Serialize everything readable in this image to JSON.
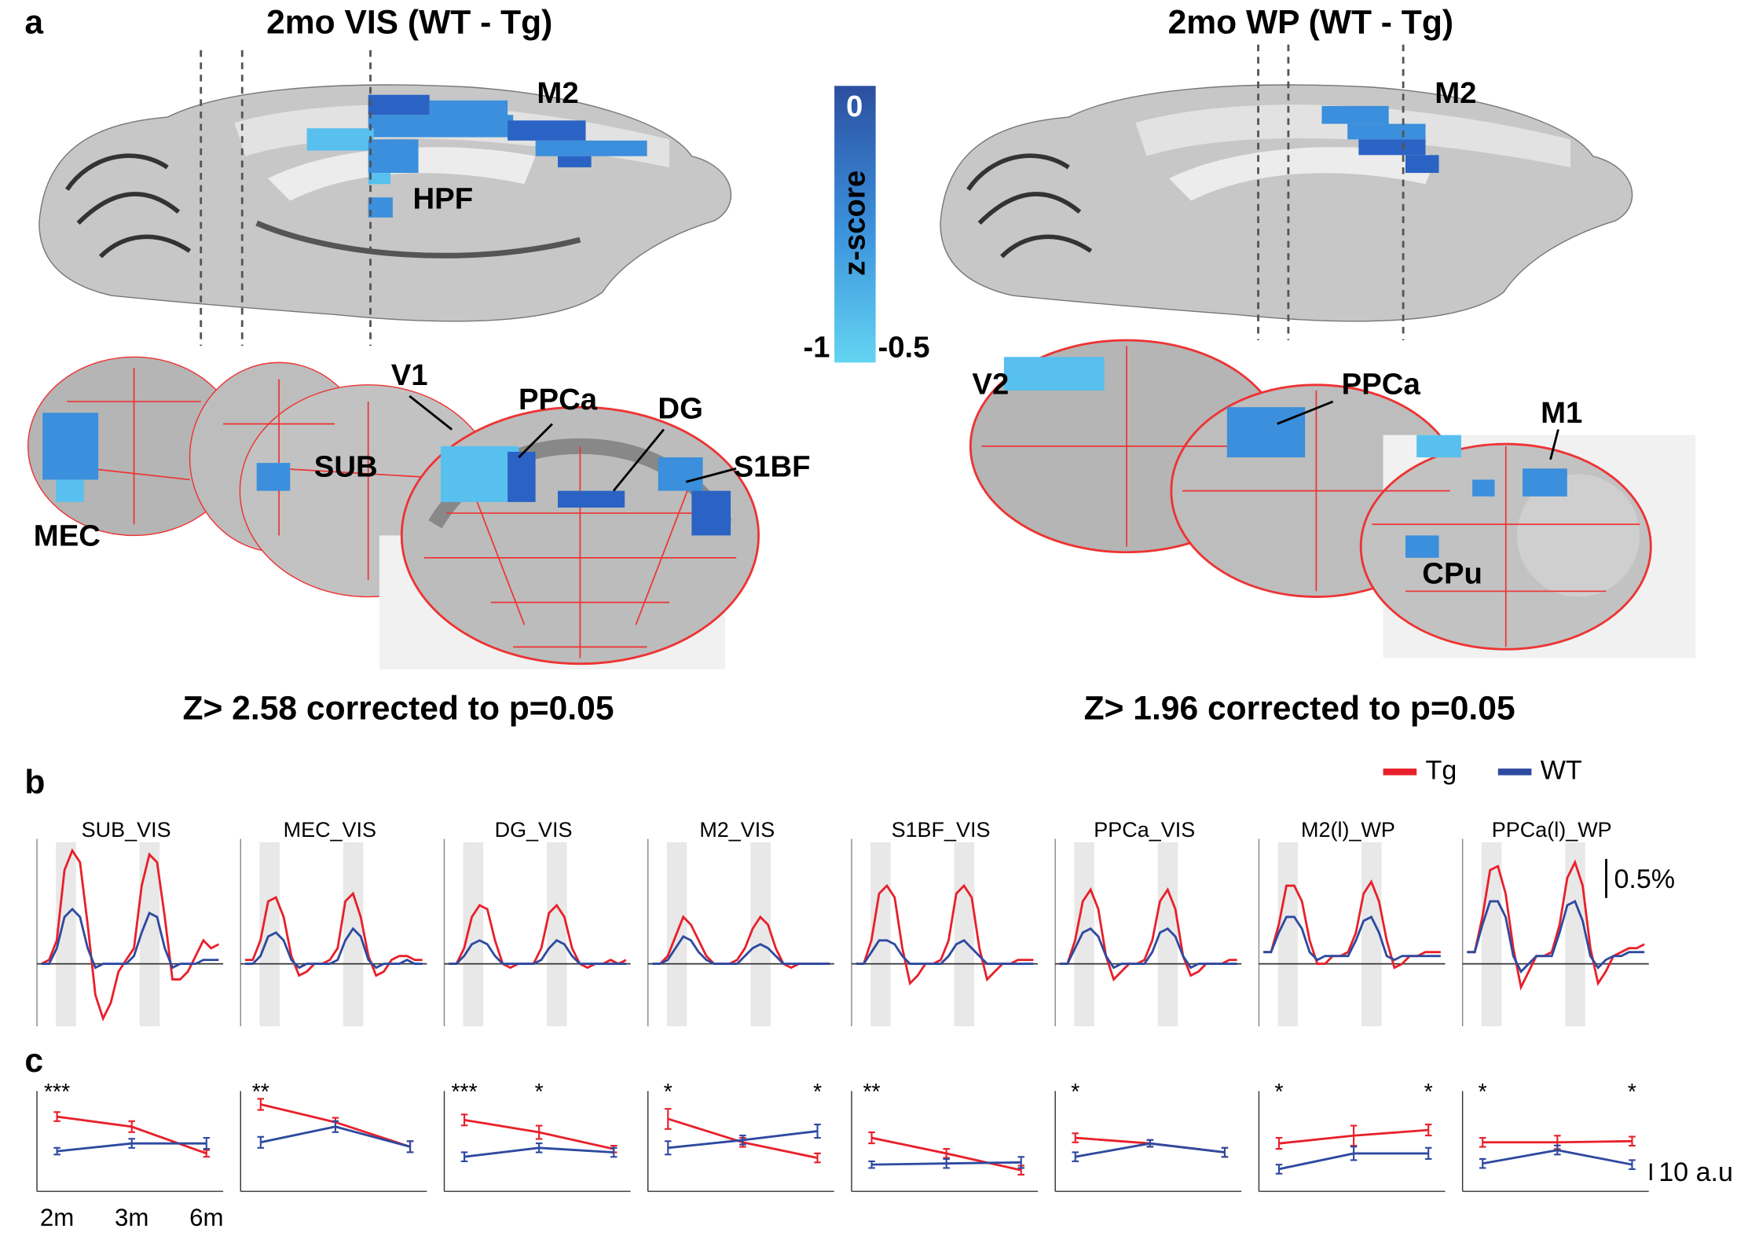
{
  "panel_a": {
    "label": "a",
    "titles": [
      "2mo VIS (WT - Tg)",
      "2mo WP (WT - Tg)"
    ],
    "regions_left": [
      "M2",
      "HPF",
      "V1",
      "PPCa",
      "DG",
      "SUB",
      "S1BF",
      "MEC"
    ],
    "regions_right": [
      "M2",
      "V2",
      "PPCa",
      "M1",
      "CPu"
    ],
    "colorbar": {
      "label": "z-score",
      "top": 0,
      "bottom_left": -1,
      "bottom_right": -0.5
    },
    "thresholds": [
      "Z> 2.58 corrected to p=0.05",
      "Z> 1.96 corrected to p=0.05"
    ]
  },
  "panel_b": {
    "label": "b"
  },
  "panel_c": {
    "label": "c"
  },
  "chart_data": [
    {
      "type": "line",
      "title": "SUB_VIS",
      "ylim": [
        -0.8,
        1.6
      ],
      "series": [
        {
          "name": "Tg",
          "color": "#e8202a",
          "values": [
            0,
            0.05,
            0.3,
            1.2,
            1.45,
            1.3,
            0.5,
            -0.4,
            -0.7,
            -0.5,
            -0.1,
            0.05,
            0.2,
            1.0,
            1.4,
            1.3,
            0.6,
            -0.2,
            -0.2,
            -0.1,
            0.1,
            0.3,
            0.2,
            0.25
          ]
        },
        {
          "name": "WT",
          "color": "#2e4aa0",
          "values": [
            0,
            0,
            0.2,
            0.6,
            0.7,
            0.6,
            0.2,
            -0.05,
            0,
            0,
            0,
            0,
            0.1,
            0.4,
            0.65,
            0.6,
            0.2,
            -0.05,
            0,
            0,
            0,
            0.05,
            0.05,
            0.05
          ]
        }
      ]
    },
    {
      "type": "line",
      "title": "MEC_VIS",
      "ylim": [
        -0.8,
        1.6
      ],
      "series": [
        {
          "name": "Tg",
          "color": "#e8202a",
          "values": [
            0.05,
            0.05,
            0.3,
            0.8,
            0.85,
            0.6,
            0.1,
            -0.15,
            -0.1,
            0,
            0,
            0.05,
            0.2,
            0.8,
            0.9,
            0.6,
            0.1,
            -0.15,
            -0.1,
            0.05,
            0.1,
            0.1,
            0.05,
            0.05
          ]
        },
        {
          "name": "WT",
          "color": "#2e4aa0",
          "values": [
            0,
            0,
            0.1,
            0.35,
            0.4,
            0.3,
            0.05,
            -0.05,
            0,
            0,
            0,
            0,
            0.05,
            0.3,
            0.45,
            0.35,
            0.05,
            -0.05,
            0,
            0,
            0,
            0.05,
            0,
            0
          ]
        }
      ]
    },
    {
      "type": "line",
      "title": "DG_VIS",
      "ylim": [
        -0.8,
        1.6
      ],
      "series": [
        {
          "name": "Tg",
          "color": "#e8202a",
          "values": [
            0,
            0,
            0.2,
            0.6,
            0.75,
            0.7,
            0.3,
            0,
            -0.05,
            0,
            0,
            0,
            0.2,
            0.65,
            0.75,
            0.6,
            0.2,
            0,
            -0.05,
            0,
            0,
            0.05,
            0,
            0.05
          ]
        },
        {
          "name": "WT",
          "color": "#2e4aa0",
          "values": [
            0,
            0,
            0.1,
            0.25,
            0.3,
            0.25,
            0.1,
            0,
            0,
            0,
            0,
            0,
            0.05,
            0.2,
            0.3,
            0.25,
            0.1,
            0,
            0,
            0,
            0,
            0,
            0,
            0
          ]
        }
      ]
    },
    {
      "type": "line",
      "title": "M2_VIS",
      "ylim": [
        -0.8,
        1.6
      ],
      "series": [
        {
          "name": "Tg",
          "color": "#e8202a",
          "values": [
            0,
            0,
            0.1,
            0.35,
            0.6,
            0.5,
            0.3,
            0.1,
            0,
            0,
            0,
            0.05,
            0.2,
            0.45,
            0.6,
            0.5,
            0.2,
            0,
            -0.05,
            0,
            0,
            0,
            0,
            0
          ]
        },
        {
          "name": "WT",
          "color": "#2e4aa0",
          "values": [
            0,
            0,
            0.05,
            0.2,
            0.35,
            0.3,
            0.15,
            0.05,
            0,
            0,
            0,
            0,
            0.1,
            0.2,
            0.25,
            0.2,
            0.1,
            0,
            0,
            0,
            0,
            0,
            0,
            0
          ]
        }
      ]
    },
    {
      "type": "line",
      "title": "S1BF_VIS",
      "ylim": [
        -0.8,
        1.6
      ],
      "series": [
        {
          "name": "Tg",
          "color": "#e8202a",
          "values": [
            0,
            0,
            0.3,
            0.9,
            1.0,
            0.85,
            0.2,
            -0.25,
            -0.15,
            0,
            0,
            0.05,
            0.3,
            0.9,
            1.0,
            0.85,
            0.2,
            -0.2,
            -0.1,
            0,
            0,
            0.05,
            0.05,
            0.05
          ]
        },
        {
          "name": "WT",
          "color": "#2e4aa0",
          "values": [
            0,
            0,
            0.15,
            0.3,
            0.3,
            0.25,
            0.1,
            0,
            0,
            0,
            0,
            0,
            0.1,
            0.25,
            0.3,
            0.2,
            0.1,
            0,
            0,
            0,
            0,
            0,
            0,
            0
          ]
        }
      ]
    },
    {
      "type": "line",
      "title": "PPCa_VIS",
      "ylim": [
        -0.8,
        1.6
      ],
      "series": [
        {
          "name": "Tg",
          "color": "#e8202a",
          "values": [
            0,
            0,
            0.3,
            0.8,
            0.95,
            0.7,
            0.1,
            -0.2,
            -0.1,
            0,
            0,
            0.05,
            0.3,
            0.8,
            0.95,
            0.7,
            0.1,
            -0.15,
            -0.1,
            0,
            0,
            0,
            0.05,
            0.05
          ]
        },
        {
          "name": "WT",
          "color": "#2e4aa0",
          "values": [
            0,
            0,
            0.2,
            0.4,
            0.45,
            0.35,
            0.1,
            -0.05,
            0,
            0,
            0,
            0,
            0.15,
            0.4,
            0.45,
            0.35,
            0.1,
            -0.05,
            0,
            0,
            0,
            0,
            0,
            0
          ]
        }
      ]
    },
    {
      "type": "line",
      "title": "M2(l)_WP",
      "ylim": [
        -0.8,
        1.6
      ],
      "series": [
        {
          "name": "Tg",
          "color": "#e8202a",
          "values": [
            0.15,
            0.15,
            0.5,
            1.0,
            1.0,
            0.8,
            0.3,
            0,
            0,
            0.1,
            0.1,
            0.15,
            0.4,
            0.9,
            1.05,
            0.8,
            0.3,
            -0.05,
            0,
            0.1,
            0.1,
            0.15,
            0.15,
            0.15
          ]
        },
        {
          "name": "WT",
          "color": "#2e4aa0",
          "values": [
            0.15,
            0.15,
            0.4,
            0.6,
            0.6,
            0.45,
            0.15,
            0.05,
            0.1,
            0.1,
            0.1,
            0.1,
            0.3,
            0.55,
            0.6,
            0.4,
            0.1,
            0.05,
            0.1,
            0.1,
            0.1,
            0.1,
            0.1,
            0.1
          ]
        }
      ]
    },
    {
      "type": "line",
      "title": "PPCa(l)_WP",
      "ylim": [
        -0.8,
        1.6
      ],
      "scalebar": {
        "value": 0.5,
        "label": "0.5%"
      },
      "series": [
        {
          "name": "Tg",
          "color": "#e8202a",
          "values": [
            0.15,
            0.15,
            0.6,
            1.2,
            1.25,
            0.9,
            0.2,
            -0.3,
            -0.1,
            0.1,
            0.1,
            0.15,
            0.5,
            1.1,
            1.3,
            1.0,
            0.2,
            -0.25,
            -0.1,
            0.1,
            0.15,
            0.2,
            0.2,
            0.25
          ]
        },
        {
          "name": "WT",
          "color": "#2e4aa0",
          "values": [
            0.15,
            0.15,
            0.5,
            0.8,
            0.8,
            0.6,
            0.1,
            -0.1,
            0,
            0.1,
            0.1,
            0.1,
            0.4,
            0.75,
            0.8,
            0.55,
            0.1,
            -0.05,
            0.05,
            0.1,
            0.1,
            0.15,
            0.15,
            0.15
          ]
        }
      ]
    },
    {
      "type": "errorline",
      "categories": [
        "2m",
        "3m",
        "6m"
      ],
      "ylim": [
        0,
        60
      ],
      "significance": [
        "***",
        null,
        null
      ],
      "series": [
        {
          "name": "Tg",
          "color": "#e8202a",
          "values": [
            44.7,
            38.7,
            22.7
          ],
          "errors": [
            2.7,
            3.3,
            2
          ]
        },
        {
          "name": "WT",
          "color": "#2e4aa0",
          "values": [
            24,
            28.7,
            28.7
          ],
          "errors": [
            2,
            2.7,
            3.3
          ]
        }
      ]
    },
    {
      "type": "errorline",
      "ylim": [
        0,
        60
      ],
      "significance": [
        "**",
        null,
        null
      ],
      "series": [
        {
          "name": "Tg",
          "color": "#e8202a",
          "values": [
            52,
            41.3,
            26.7
          ],
          "errors": [
            3.3,
            2.7,
            3.3
          ]
        },
        {
          "name": "WT",
          "color": "#2e4aa0",
          "values": [
            29.3,
            38.7,
            26.7
          ],
          "errors": [
            3.3,
            3.3,
            3.3
          ]
        }
      ]
    },
    {
      "type": "errorline",
      "ylim": [
        0,
        60
      ],
      "significance": [
        "***",
        "*",
        null
      ],
      "series": [
        {
          "name": "Tg",
          "color": "#e8202a",
          "values": [
            42.7,
            35.3,
            25.3
          ],
          "errors": [
            3.3,
            4,
            2
          ]
        },
        {
          "name": "WT",
          "color": "#2e4aa0",
          "values": [
            20.7,
            26,
            23.3
          ],
          "errors": [
            2.7,
            2.7,
            2.7
          ]
        }
      ]
    },
    {
      "type": "errorline",
      "ylim": [
        0,
        60
      ],
      "significance": [
        "*",
        null,
        "*"
      ],
      "series": [
        {
          "name": "Tg",
          "color": "#e8202a",
          "values": [
            43.3,
            29.3,
            20
          ],
          "errors": [
            6,
            2.7,
            2.7
          ]
        },
        {
          "name": "WT",
          "color": "#2e4aa0",
          "values": [
            26,
            30.7,
            36
          ],
          "errors": [
            4,
            2.7,
            4
          ]
        }
      ]
    },
    {
      "type": "errorline",
      "ylim": [
        0,
        60
      ],
      "significance": [
        "**",
        null,
        null
      ],
      "series": [
        {
          "name": "Tg",
          "color": "#e8202a",
          "values": [
            32,
            22.7,
            12.7
          ],
          "errors": [
            3.3,
            2.7,
            2.7
          ]
        },
        {
          "name": "WT",
          "color": "#2e4aa0",
          "values": [
            16,
            16.7,
            17.3
          ],
          "errors": [
            2,
            2.7,
            3.3
          ]
        }
      ]
    },
    {
      "type": "errorline",
      "ylim": [
        0,
        60
      ],
      "significance": [
        "*",
        null,
        null
      ],
      "series": [
        {
          "name": "Tg",
          "color": "#e8202a",
          "values": [
            32,
            28.7,
            23.3
          ],
          "errors": [
            2.7,
            2,
            2.7
          ]
        },
        {
          "name": "WT",
          "color": "#2e4aa0",
          "values": [
            20.7,
            28.7,
            23.3
          ],
          "errors": [
            2.7,
            2,
            2.7
          ]
        }
      ]
    },
    {
      "type": "errorline",
      "ylim": [
        0,
        60
      ],
      "significance": [
        "*",
        null,
        "*"
      ],
      "series": [
        {
          "name": "Tg",
          "color": "#e8202a",
          "values": [
            28.7,
            33.3,
            36.7
          ],
          "errors": [
            3.3,
            6,
            3.3
          ]
        },
        {
          "name": "WT",
          "color": "#2e4aa0",
          "values": [
            13.3,
            22.7,
            22.7
          ],
          "errors": [
            2.7,
            4,
            3.3
          ]
        }
      ]
    },
    {
      "type": "errorline",
      "ylim": [
        0,
        60
      ],
      "significance": [
        "*",
        null,
        "*"
      ],
      "scalebar": {
        "value": 10,
        "label": "10 a.u"
      },
      "series": [
        {
          "name": "Tg",
          "color": "#e8202a",
          "values": [
            29.3,
            29.3,
            30
          ],
          "errors": [
            2.7,
            4,
            2.7
          ]
        },
        {
          "name": "WT",
          "color": "#2e4aa0",
          "values": [
            16.7,
            24.7,
            16
          ],
          "errors": [
            2.7,
            2.7,
            2.7
          ]
        }
      ]
    }
  ]
}
